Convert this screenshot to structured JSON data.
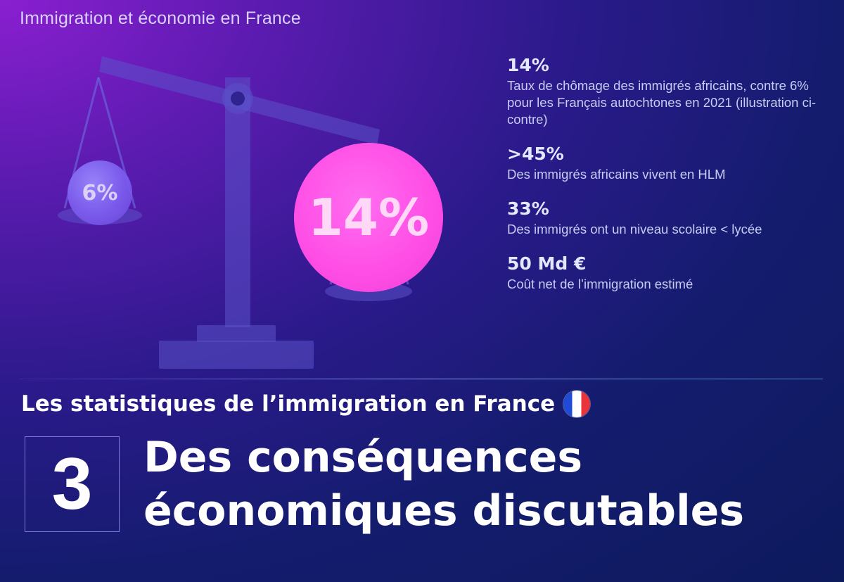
{
  "header": {
    "title": "Immigration et économie en France"
  },
  "illustration": {
    "left_pan_value": "6%",
    "right_pan_value": "14%",
    "colors": {
      "left_circle": "#7d5df0",
      "right_circle": "#ff4fe6",
      "scale": "#5048b8"
    }
  },
  "stats": [
    {
      "value": "14%",
      "description": "Taux de chômage des immigrés africains, contre 6% pour les Français autochtones en 2021 (illustration ci-contre)"
    },
    {
      "value": ">45%",
      "description": "Des immigrés africains vivent en HLM"
    },
    {
      "value": "33%",
      "description": "Des immigrés ont un niveau scolaire < lycée"
    },
    {
      "value": "50 Md €",
      "description": "Coût net de l’immigration estimé"
    }
  ],
  "footer": {
    "subtitle": "Les statistiques de l’immigration en France",
    "flag_icon": "france-flag-icon",
    "chapter_number": "3",
    "headline_line1": "Des conséquences",
    "headline_line2": "économiques discutables"
  }
}
